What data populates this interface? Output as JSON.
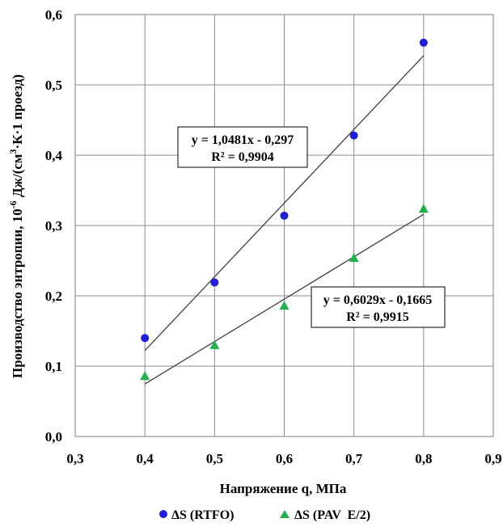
{
  "chart_data": {
    "type": "scatter",
    "title": "",
    "xlabel": "Напряжение q, МПа",
    "ylabel_main": "Производство энтропии, 10",
    "ylabel_sup": "-6",
    "ylabel_mid": " Дж/(см",
    "ylabel_sup2": "3",
    "ylabel_tail": "·К·1 проезд)",
    "xlim": [
      0.3,
      0.9
    ],
    "ylim": [
      0.0,
      0.6
    ],
    "x_ticks": [
      0.3,
      0.4,
      0.5,
      0.6,
      0.7,
      0.8,
      0.9
    ],
    "x_tick_labels": [
      "0,3",
      "0,4",
      "0,5",
      "0,6",
      "0,7",
      "0,8",
      "0,9"
    ],
    "y_ticks": [
      0.0,
      0.1,
      0.2,
      0.3,
      0.4,
      0.5,
      0.6
    ],
    "y_tick_labels": [
      "0,0",
      "0,1",
      "0,2",
      "0,3",
      "0,4",
      "0,5",
      "0,6"
    ],
    "grid": true,
    "legend_position": "bottom",
    "series": [
      {
        "name": "ΔS (RTFO)",
        "marker": "circle",
        "color": "#1f1fd6",
        "x": [
          0.4,
          0.5,
          0.6,
          0.7,
          0.8
        ],
        "y": [
          0.14,
          0.219,
          0.314,
          0.428,
          0.56
        ],
        "trendline": {
          "slope": 1.0481,
          "intercept": -0.297,
          "equation": "y = 1,0481x - 0,297",
          "r2": "R² = 0,9904"
        }
      },
      {
        "name": "ΔS (PAV  E/2)",
        "marker": "triangle",
        "color": "#22b14c",
        "x": [
          0.4,
          0.5,
          0.6,
          0.7,
          0.8
        ],
        "y": [
          0.086,
          0.13,
          0.186,
          0.254,
          0.324
        ],
        "trendline": {
          "slope": 0.6029,
          "intercept": -0.1665,
          "equation": "y = 0,6029x - 0,1665",
          "r2": "R² = 0,9915"
        }
      }
    ]
  }
}
